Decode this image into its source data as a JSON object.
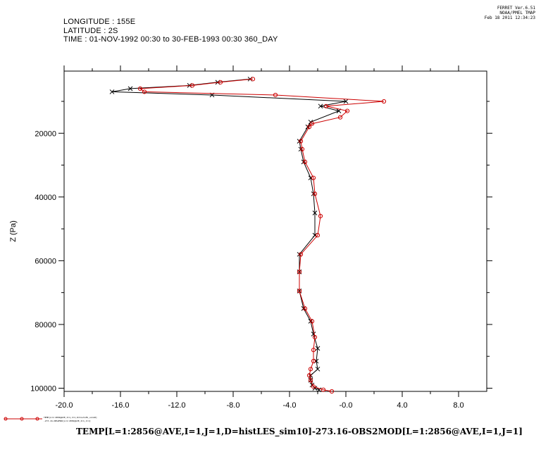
{
  "header": {
    "longitude": "LONGITUDE : 155E",
    "latitude": "LATITUDE : 2S",
    "time": "TIME : 01-NOV-1992 00:30 to 30-FEB-1993 00:30 360_DAY"
  },
  "stamp": {
    "line1": "FERRET  Ver.6.51",
    "line2": "NOAA/PMEL TMAP",
    "line3": "Feb 18 2011 12:34:23"
  },
  "legend": {
    "line1": "TEMP[L=1:2856@AVE,I=1,J=1,D=histLES_sim10]",
    "line2": "-273.16-OBS2MOD[L=1:2856@AVE,I=1,J=1]"
  },
  "bottom_title": "TEMP[L=1:2856@AVE,I=1,J=1,D=histLES_sim10]-273.16-OBS2MOD[L=1:2856@AVE,I=1,J=1]",
  "colors": {
    "black_series": "#000000",
    "red_series": "#cc0000"
  },
  "chart_data": {
    "type": "line",
    "xlabel": "",
    "ylabel": "Z (Pa)",
    "xlim": [
      -20,
      10
    ],
    "ylim": [
      101000,
      500
    ],
    "y_inverted": true,
    "x_ticks": [
      -20,
      -16,
      -12,
      -8,
      -4,
      0,
      4,
      8
    ],
    "x_tick_labels": [
      "-20.0",
      "-16.0",
      "-12.0",
      "-8.0",
      "-4.0",
      "-0.0",
      "4.0",
      "8.0"
    ],
    "y_ticks": [
      20000,
      40000,
      60000,
      80000,
      100000
    ],
    "y_tick_labels": [
      "20000",
      "40000",
      "60000",
      "80000",
      "100000"
    ],
    "y_minor_ticks": [
      10000,
      30000,
      50000,
      70000,
      90000
    ],
    "series": [
      {
        "name": "",
        "color": "black",
        "marker": "x",
        "points": [
          [
            -6.8,
            3000
          ],
          [
            -9.1,
            4000
          ],
          [
            -11.1,
            5000
          ],
          [
            -15.3,
            6000
          ],
          [
            -16.6,
            7000
          ],
          [
            -9.5,
            8000
          ],
          [
            0,
            10000
          ],
          [
            -1.8,
            11500
          ],
          [
            -0.5,
            13000
          ],
          [
            -2.5,
            16500
          ],
          [
            -2.7,
            18000
          ],
          [
            -3.3,
            22500
          ],
          [
            -3.2,
            25000
          ],
          [
            -3.0,
            29000
          ],
          [
            -2.5,
            34000
          ],
          [
            -2.3,
            39000
          ],
          [
            -2.2,
            45000
          ],
          [
            -2.2,
            52000
          ],
          [
            -3.3,
            58000
          ],
          [
            -3.3,
            63500
          ],
          [
            -3.3,
            69500
          ],
          [
            -3.0,
            75000
          ],
          [
            -2.5,
            79000
          ],
          [
            -2.3,
            83000
          ],
          [
            -2.0,
            87500
          ],
          [
            -2.1,
            91500
          ],
          [
            -2.0,
            94000
          ],
          [
            -2.5,
            96000
          ],
          [
            -2.5,
            97500
          ],
          [
            -2.4,
            99000
          ],
          [
            -2.2,
            100000
          ],
          [
            -1.9,
            100500
          ]
        ]
      },
      {
        "name": "",
        "color": "red",
        "marker": "o",
        "points": [
          [
            -6.6,
            3000
          ],
          [
            -8.9,
            4000
          ],
          [
            -10.9,
            5000
          ],
          [
            -14.6,
            6000
          ],
          [
            -14.3,
            7000
          ],
          [
            -5.0,
            8000
          ],
          [
            2.7,
            10000
          ],
          [
            -1.4,
            11500
          ],
          [
            0.1,
            13000
          ],
          [
            -0.4,
            15000
          ],
          [
            -2.4,
            17000
          ],
          [
            -2.6,
            18000
          ],
          [
            -3.2,
            22500
          ],
          [
            -3.1,
            25000
          ],
          [
            -2.9,
            29000
          ],
          [
            -2.3,
            34000
          ],
          [
            -2.2,
            39000
          ],
          [
            -1.8,
            46000
          ],
          [
            -2.0,
            52000
          ],
          [
            -3.2,
            58000
          ],
          [
            -3.3,
            63500
          ],
          [
            -3.3,
            69500
          ],
          [
            -2.9,
            75000
          ],
          [
            -2.4,
            79000
          ],
          [
            -2.2,
            84000
          ],
          [
            -2.3,
            88000
          ],
          [
            -2.3,
            91500
          ],
          [
            -2.5,
            94000
          ],
          [
            -2.6,
            96000
          ],
          [
            -2.5,
            97500
          ],
          [
            -2.3,
            99500
          ],
          [
            -1.6,
            100500
          ],
          [
            -1.0,
            101000
          ]
        ]
      }
    ]
  }
}
